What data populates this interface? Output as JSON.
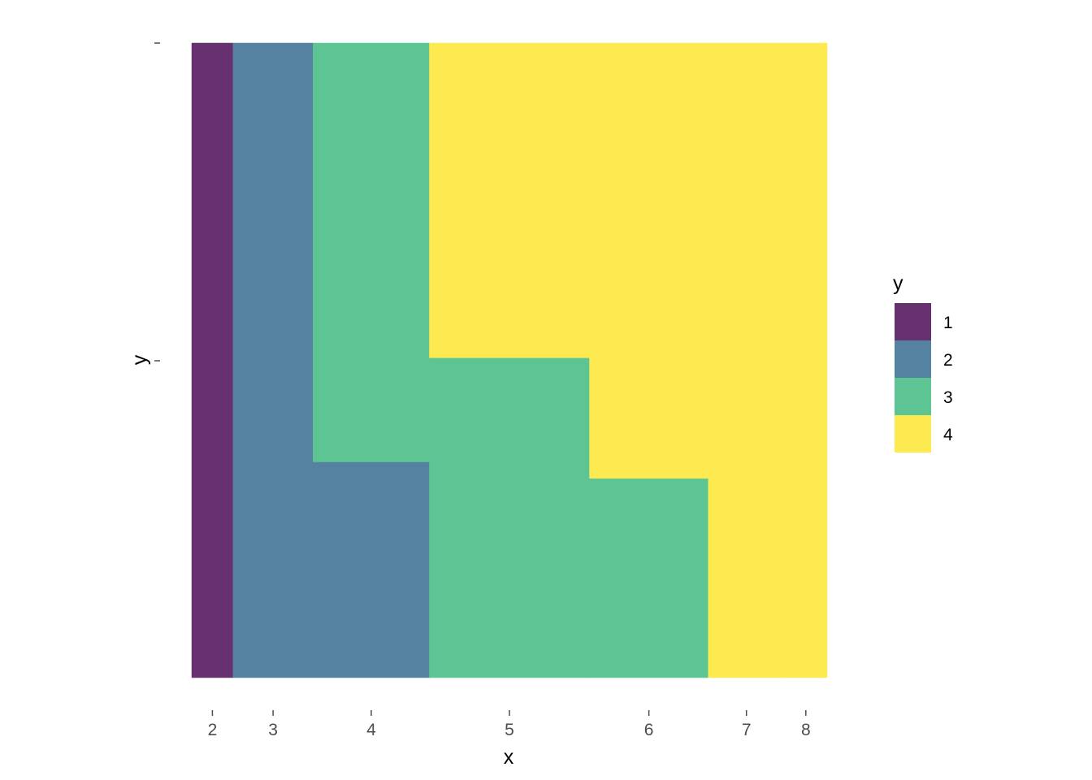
{
  "chart_data": {
    "type": "mosaic",
    "xlabel": "x",
    "ylabel": "y",
    "x_categories": [
      "2",
      "3",
      "4",
      "5",
      "6",
      "7",
      "8"
    ],
    "x_widths": [
      0.065,
      0.126,
      0.183,
      0.252,
      0.187,
      0.12,
      0.067
    ],
    "fill_levels": [
      "1",
      "2",
      "3",
      "4"
    ],
    "colors": {
      "1": "#67306f",
      "2": "#5682a2",
      "3": "#5cc593",
      "4": "#fcea50"
    },
    "columns": [
      {
        "x": "2",
        "segments": [
          {
            "fill": "1",
            "proportion": 1.0
          }
        ]
      },
      {
        "x": "3",
        "segments": [
          {
            "fill": "2",
            "proportion": 1.0
          }
        ]
      },
      {
        "x": "4",
        "segments": [
          {
            "fill": "2",
            "proportion": 0.34
          },
          {
            "fill": "3",
            "proportion": 0.66
          }
        ]
      },
      {
        "x": "5",
        "segments": [
          {
            "fill": "3",
            "proportion": 0.504
          },
          {
            "fill": "4",
            "proportion": 0.496
          }
        ]
      },
      {
        "x": "6",
        "segments": [
          {
            "fill": "3",
            "proportion": 0.314
          },
          {
            "fill": "4",
            "proportion": 0.686
          }
        ]
      },
      {
        "x": "7",
        "segments": [
          {
            "fill": "4",
            "proportion": 1.0
          }
        ]
      },
      {
        "x": "8",
        "segments": [
          {
            "fill": "4",
            "proportion": 1.0
          }
        ]
      }
    ],
    "y_ticks": [
      "",
      ""
    ],
    "legend": {
      "title": "y",
      "position": "right",
      "entries": [
        "1",
        "2",
        "3",
        "4"
      ]
    },
    "grid": false
  }
}
